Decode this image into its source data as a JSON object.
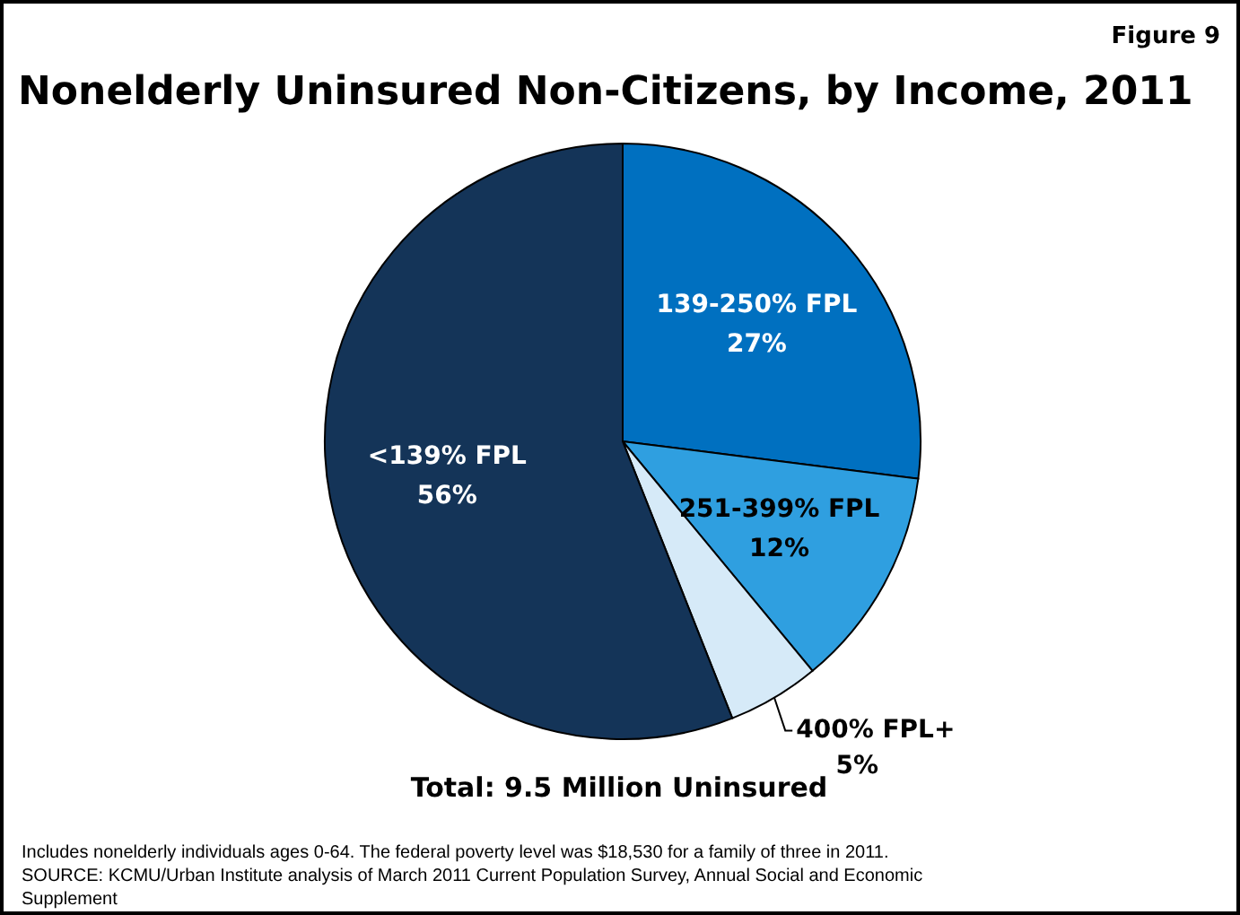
{
  "chart_data": {
    "type": "pie",
    "title": "Nonelderly Uninsured Non-Citizens, by Income, 2011",
    "categories": [
      "139-250% FPL",
      "251-399% FPL",
      "400% FPL+",
      "<139% FPL"
    ],
    "values": [
      27,
      12,
      5,
      56
    ],
    "colors": [
      "#0070c0",
      "#2f9fe0",
      "#d6eaf8",
      "#143458"
    ],
    "value_labels": [
      "27%",
      "12%",
      "5%",
      "56%"
    ],
    "annotations": [
      "Figure 9",
      "Total: 9.5 Million Uninsured",
      "Includes nonelderly individuals ages 0-64. The federal poverty level was  $18,530 for a family of three in 2011.",
      "SOURCE: KCMU/Urban Institute analysis of March 2011 Current Population Survey, Annual Social and Economic Supplement"
    ]
  }
}
